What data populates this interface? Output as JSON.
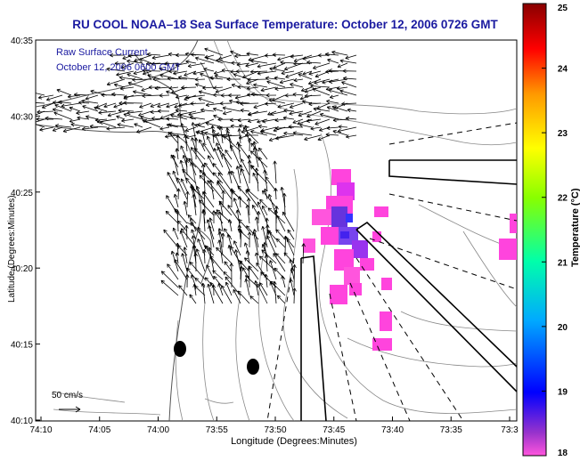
{
  "title": "RU COOL  NOAA–18  Sea Surface Temperature:  October 12, 2006 0726 GMT",
  "legend": {
    "line1": "Raw Surface Current",
    "line2": "October 12, 2006 0600 GMT",
    "scale_label": "50 cm/s"
  },
  "axes": {
    "xlabel": "Longitude (Degrees:Minutes)",
    "ylabel": "Latitude (Degrees:Minutes)",
    "xticks": [
      "74:10",
      "74:05",
      "74:00",
      "73:55",
      "73:50",
      "73:45",
      "73:40",
      "73:35",
      "73:3"
    ],
    "yticks": [
      "40:35",
      "40:30",
      "40:25",
      "40:20",
      "40:15",
      "40:10"
    ]
  },
  "colorbar": {
    "title": "Temperature (°C)",
    "ticks": [
      "25",
      "24",
      "23",
      "22",
      "21",
      "20",
      "19",
      "18"
    ],
    "min": 18,
    "max": 25
  },
  "chart_data": {
    "type": "heatmap",
    "title": "RU COOL  NOAA–18  Sea Surface Temperature:  October 12, 2006 0726 GMT",
    "xlabel": "Longitude (Degrees:Minutes)",
    "ylabel": "Latitude (Degrees:Minutes)",
    "xlim": [
      "74:10",
      "73:3"
    ],
    "ylim": [
      "40:10",
      "40:35"
    ],
    "colorscale_range": [
      18,
      25
    ],
    "colorbar_label": "Temperature (°C)",
    "overlay": "Raw Surface Current vectors, October 12, 2006 0600 GMT",
    "vector_scale": "50 cm/s"
  }
}
